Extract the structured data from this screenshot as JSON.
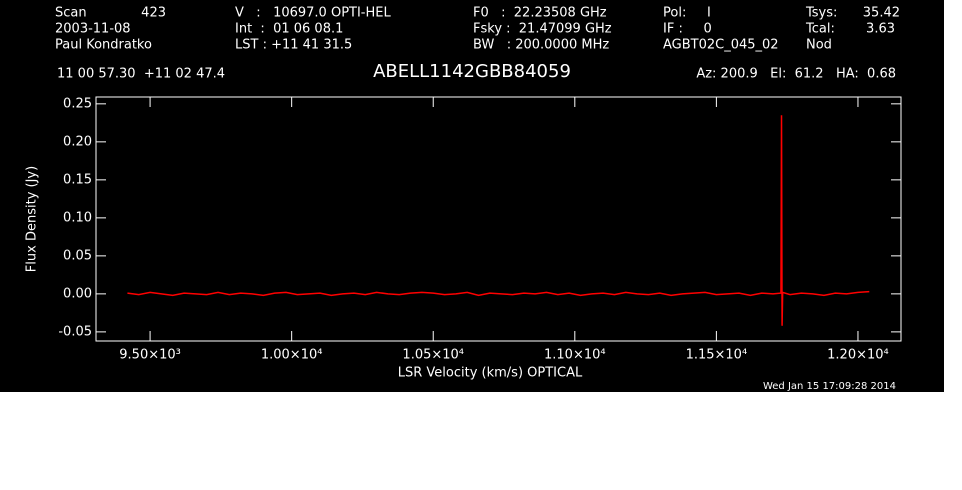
{
  "header": {
    "scan_label": "Scan",
    "scan": "423",
    "date": "2003-11-08",
    "observer": "Paul Kondratko",
    "velocity": "V   :   10697.0 OPTI-HEL",
    "int": "Int  :  01 06 08.1",
    "lst": "LST : +11 41 31.5",
    "f0": "F0   :  22.23508 GHz",
    "fsky": "Fsky :  21.47099 GHz",
    "bw": "BW   : 200.0000 MHz",
    "pol": "Pol:     I",
    "if": "IF :     0",
    "project": "AGBT02C_045_02",
    "tsys_label": "Tsys:",
    "tsys": "35.42",
    "tcal_label": "Tcal:",
    "tcal": "3.63",
    "proc": "Nod",
    "coords": "11 00 57.30  +11 02 47.4",
    "azel": "Az: 200.9   El:  61.2   HA:  0.68",
    "timestamp": "Wed Jan 15 17:09:28 2014"
  },
  "chart_data": {
    "type": "line",
    "title": "ABELL1142GBB84059",
    "x_label": "LSR Velocity (km/s) OPTICAL",
    "y_label": "Flux Density (Jy)",
    "xlim": [
      9309,
      12152
    ],
    "ylim": [
      -0.062,
      0.259
    ],
    "xticks": [
      {
        "value": 9500,
        "label": "9.50×10³"
      },
      {
        "value": 10000,
        "label": "1.00×10⁴"
      },
      {
        "value": 10500,
        "label": "1.05×10⁴"
      },
      {
        "value": 11000,
        "label": "1.10×10⁴"
      },
      {
        "value": 11500,
        "label": "1.15×10⁴"
      },
      {
        "value": 12000,
        "label": "1.20×10⁴"
      }
    ],
    "yticks": [
      {
        "value": -0.05,
        "label": "-0.05"
      },
      {
        "value": 0,
        "label": "0.00"
      },
      0.05,
      {
        "value": 0.1,
        "label": "0.10"
      },
      0.15,
      {
        "value": 0.2,
        "label": "0.20"
      },
      0.25
    ],
    "x": [
      9420,
      9460,
      9500,
      9540,
      9580,
      9620,
      9660,
      9700,
      9740,
      9780,
      9820,
      9860,
      9900,
      9940,
      9980,
      10020,
      10060,
      10100,
      10140,
      10180,
      10220,
      10260,
      10300,
      10340,
      10380,
      10420,
      10460,
      10500,
      10540,
      10580,
      10620,
      10660,
      10700,
      10740,
      10780,
      10820,
      10860,
      10900,
      10940,
      10980,
      11020,
      11060,
      11100,
      11140,
      11180,
      11220,
      11260,
      11300,
      11340,
      11380,
      11420,
      11460,
      11500,
      11540,
      11580,
      11620,
      11660,
      11700,
      11728,
      11730,
      11732,
      11734,
      11760,
      11800,
      11840,
      11880,
      11920,
      11960,
      12000,
      12040
    ],
    "series": [
      {
        "name": "spectrum",
        "color": "#ff0000",
        "values": [
          0.001,
          -0.001,
          0.002,
          0.0,
          -0.002,
          0.001,
          0.0,
          -0.001,
          0.002,
          -0.001,
          0.001,
          0.0,
          -0.002,
          0.001,
          0.002,
          -0.001,
          0.0,
          0.001,
          -0.002,
          0.0,
          0.001,
          -0.001,
          0.002,
          0.0,
          -0.001,
          0.001,
          0.002,
          0.001,
          -0.001,
          0.0,
          0.002,
          -0.002,
          0.001,
          0.0,
          -0.001,
          0.001,
          0.0,
          0.002,
          -0.001,
          0.001,
          -0.002,
          0.0,
          0.001,
          -0.001,
          0.002,
          0.0,
          -0.001,
          0.001,
          -0.002,
          0.0,
          0.001,
          0.002,
          -0.001,
          0.0,
          0.001,
          -0.002,
          0.001,
          0.0,
          0.001,
          0.235,
          -0.042,
          0.002,
          -0.001,
          0.001,
          0.0,
          -0.002,
          0.001,
          0.0,
          0.002,
          0.003
        ]
      }
    ]
  }
}
